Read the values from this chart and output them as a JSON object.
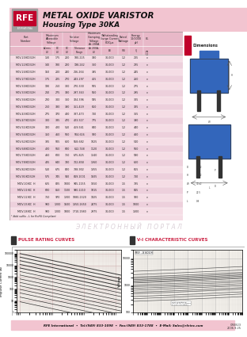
{
  "title1": "METAL OXIDE VARISTOR",
  "title2": "Housing Type 30KA",
  "header_bg": "#f2c4d0",
  "header_top_white": "#ffffff",
  "pink_light": "#f5dde5",
  "pink_table": "#f0d0da",
  "white_bg": "#ffffff",
  "rfe_red": "#c0002a",
  "rfe_gray": "#9e9e9e",
  "text_dark": "#222222",
  "watermark_color": "#d8ccd4",
  "col_labels": [
    "Part\nNumber",
    "Maximum\nAllowable\nVoltage\nACrms\n(V)",
    "DC\n(V)",
    "Varistor\nVoltage\nDC\n(V)",
    "Tolerance\nRange",
    "Maximum\nClamping\nVoltage\nAt 200A",
    "Withstanding\nSurge Current\n8/20μs\n(A)",
    "Rated\nWattage\n(W)",
    "Energy\n10/1000\nμH\n(J)",
    "UL"
  ],
  "rows": [
    [
      "MOV-20(KD32H",
      "130",
      "175",
      "200",
      "180-225",
      "330",
      "30,000",
      "1.2",
      "215",
      "v"
    ],
    [
      "MOV-22(KD32H",
      "140",
      "180",
      "220",
      "198-242",
      "360",
      "30,000",
      "1.2",
      "235",
      "v"
    ],
    [
      "MOV-24(KD32H",
      "150",
      "200",
      "240",
      "216-264",
      "395",
      "30,000",
      "1.2",
      "245",
      "v"
    ],
    [
      "MOV-27(KD32H",
      "175",
      "225",
      "270",
      "243-297",
      "455",
      "30,000",
      "1.2",
      "260",
      "v"
    ],
    [
      "MOV-30(KD32H",
      "190",
      "250",
      "300",
      "270-330",
      "505",
      "30,000",
      "1.2",
      "275",
      "v"
    ],
    [
      "MOV-33(KD32H",
      "210",
      "275",
      "330",
      "297-363",
      "550",
      "30,000",
      "1.2",
      "295",
      "v"
    ],
    [
      "MOV-36(KD32H",
      "230",
      "300",
      "360",
      "324-396",
      "595",
      "30,000",
      "1.2",
      "305",
      "v"
    ],
    [
      "MOV-39(KD32H",
      "250",
      "330",
      "390",
      "351-429",
      "650",
      "30,000",
      "1.2",
      "325",
      "v"
    ],
    [
      "MOV-43(KD32H",
      "275",
      "370",
      "430",
      "387-473",
      "710",
      "30,000",
      "1.2",
      "365",
      "v"
    ],
    [
      "MOV-47(KD32H",
      "300",
      "385",
      "470",
      "423-517",
      "775",
      "30,000",
      "1.2",
      "390",
      "v"
    ],
    [
      "MOV-51(KD32H",
      "320",
      "420",
      "510",
      "459-561",
      "840",
      "30,000",
      "1.2",
      "440",
      "v"
    ],
    [
      "MOV-56(KD32H",
      "350",
      "460",
      "560",
      "504-616",
      "920",
      "30,000",
      "1.2",
      "460",
      "v"
    ],
    [
      "MOV-62(KD32H",
      "385",
      "505",
      "620",
      "558-682",
      "1025",
      "30,000",
      "1.2",
      "540",
      "v"
    ],
    [
      "MOV-68(KD32H",
      "420",
      "560",
      "680",
      "612-748",
      "1120",
      "30,000",
      "1.2",
      "560",
      "v"
    ],
    [
      "MOV-75(KD32H",
      "460",
      "600",
      "750",
      "675-825",
      "1240",
      "30,000",
      "1.2",
      "590",
      "v"
    ],
    [
      "MOV-78(KD32H",
      "485",
      "640",
      "780",
      "702-858",
      "1260",
      "30,000",
      "1.2",
      "620",
      "v"
    ],
    [
      "MOV-82(KD32H",
      "510",
      "675",
      "820",
      "738-902",
      "1355",
      "30,000",
      "1.2",
      "655",
      "v"
    ],
    [
      "MOV-91(KD32H",
      "575",
      "745",
      "910",
      "819-1001",
      "1505",
      "30,000",
      "1.2",
      "710",
      "v"
    ],
    [
      "MOV-10(KC  H",
      "625",
      "825",
      "1000",
      "945-1155",
      "1650",
      "30,000",
      "1.5",
      "735",
      "v"
    ],
    [
      "MOV-11(KC  H",
      "680",
      "850",
      "1100",
      "990-1210",
      "1815",
      "30,000",
      "1.5",
      "815",
      "v"
    ],
    [
      "MOV-12(KC  H",
      "750",
      "970",
      "1200",
      "1080-1320",
      "1925",
      "30,000",
      "1.5",
      "920",
      "v"
    ],
    [
      "MOV-15(KC  H",
      "900",
      "1200",
      "1500",
      "1350-1650",
      "2475",
      "30,000",
      "1.5",
      "1000",
      "v"
    ],
    [
      "MOV-18(KC  H",
      "900",
      "1200",
      "1800",
      "1710-1980",
      "2975",
      "30,000",
      "1.5",
      "1300",
      "v"
    ]
  ],
  "footnote": "* Add suffix - L for RoHS Compliant",
  "pulse_title": "PULSE RATING CURVES",
  "vi_title": "V-I CHARACTERISTIC CURVES",
  "watermark": "Э Л Е К Т Р О Н Н Ы Й   П О Р Т А Л",
  "footer_text": "RFE International  •  Tel:(949) 833-1098  •  Fax:(949) 833-1788  •  E-Mail: Sales@rfeinc.com",
  "footer_code": "CR0823",
  "footer_date": "2006.9.25"
}
